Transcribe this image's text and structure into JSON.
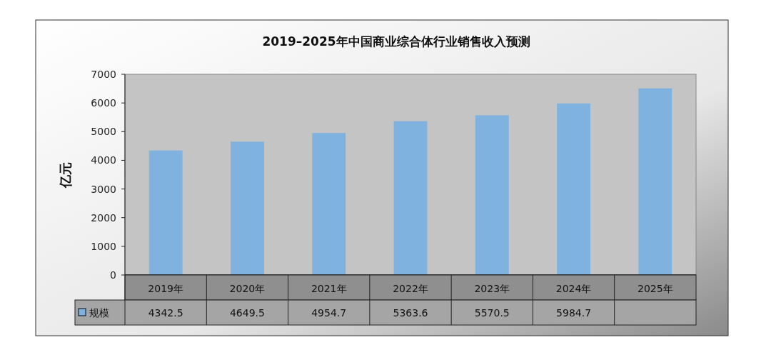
{
  "chart_data": {
    "type": "bar",
    "title": "2019–2025年中国商业综合体行业销售收入预测",
    "ylabel": "亿元",
    "categories": [
      "2019年",
      "2020年",
      "2021年",
      "2022年",
      "2023年",
      "2024年",
      "2025年"
    ],
    "series": [
      {
        "name": "规模",
        "color": "#7fb2de",
        "values": [
          4342.5,
          4649.5,
          4954.7,
          5363.6,
          5570.5,
          5984.7,
          6510
        ],
        "value_labels": [
          "4342.5",
          "4649.5",
          "4954.7",
          "5363.6",
          "5570.5",
          "5984.7",
          null
        ]
      }
    ],
    "ylim": [
      0,
      7000
    ],
    "yticks": [
      0,
      1000,
      2000,
      3000,
      4000,
      5000,
      6000,
      7000
    ],
    "legend": "bottom"
  }
}
